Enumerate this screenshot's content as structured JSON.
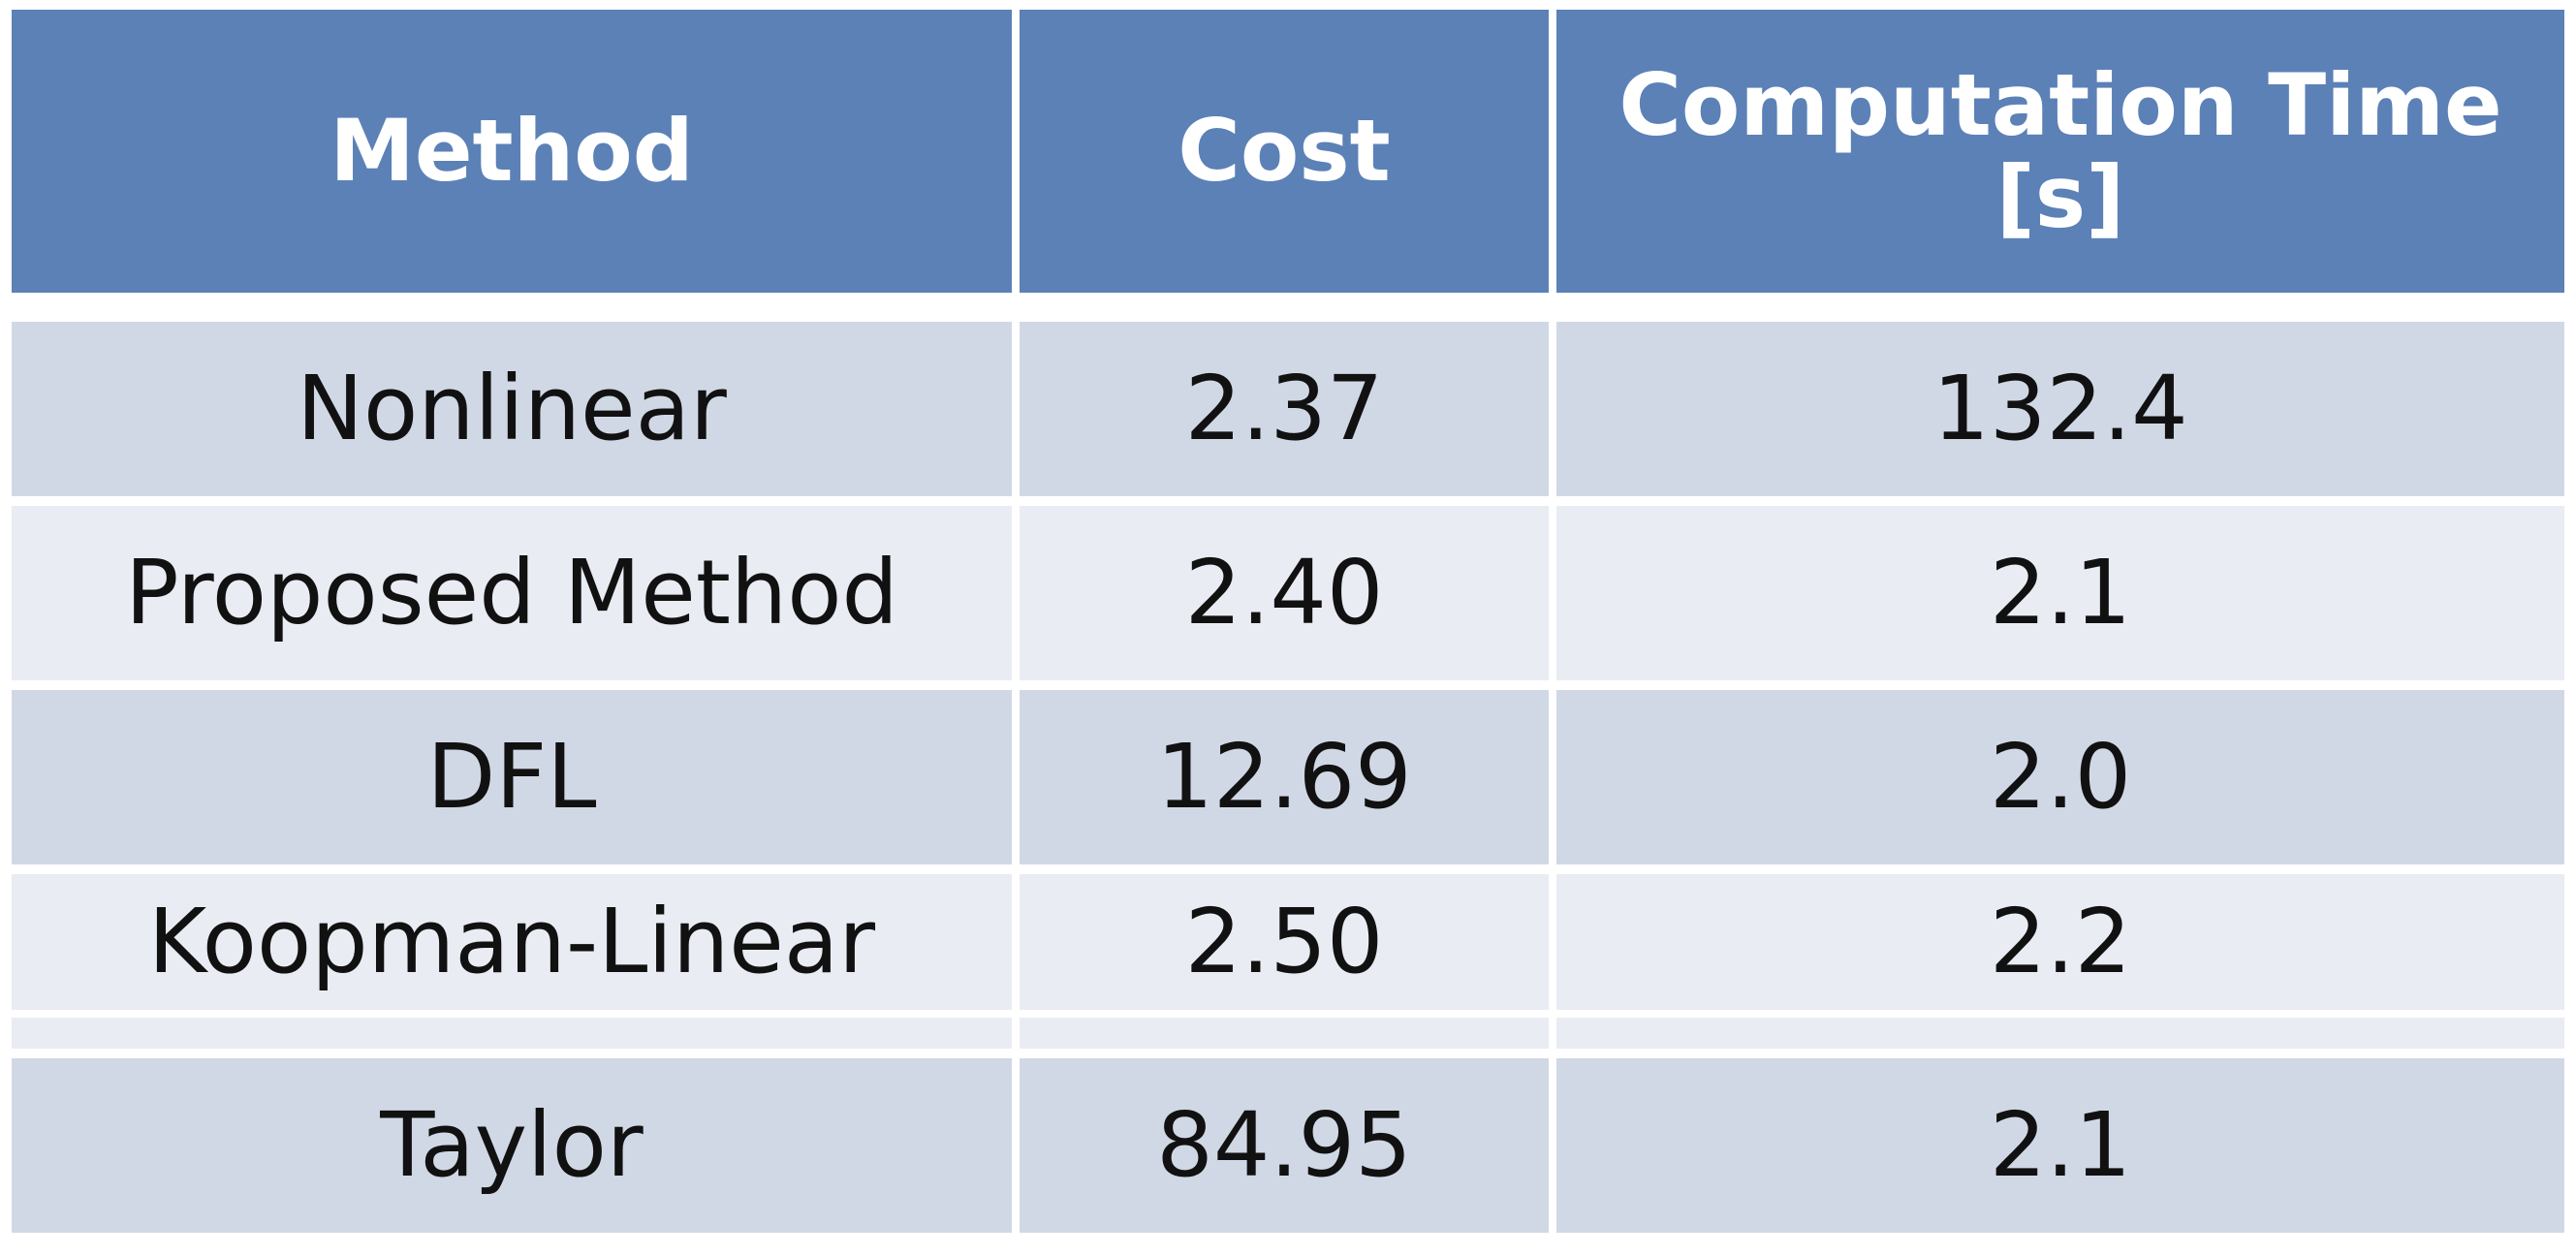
{
  "table": {
    "headers": [
      "Method",
      "Cost",
      "Computation Time [s]"
    ],
    "rows": [
      [
        "Nonlinear",
        "2.37",
        "132.4"
      ],
      [
        "Proposed Method",
        "2.40",
        "2.1"
      ],
      [
        "DFL",
        "12.69",
        "2.0"
      ],
      [
        "Koopman-Linear",
        "2.50",
        "2.2"
      ],
      [
        "Taylor",
        "84.95",
        "2.1"
      ]
    ],
    "colors": {
      "header_bg": "#5b81b7",
      "row_odd_bg": "#d1d8e5",
      "row_even_bg": "#e9ecf3",
      "header_text": "#ffffff",
      "body_text": "#111111"
    }
  }
}
